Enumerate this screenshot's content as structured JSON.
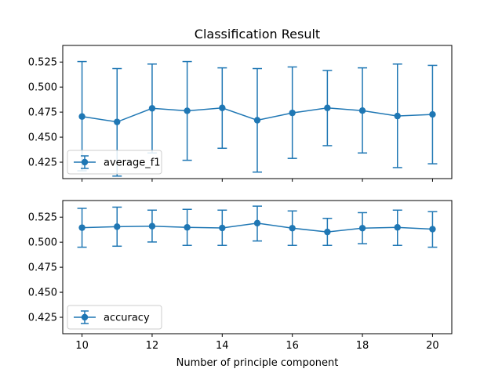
{
  "chart_data": {
    "type": "line",
    "title": "Classification Result",
    "xlabel": "Number of principle component",
    "x": [
      10,
      11,
      12,
      13,
      14,
      15,
      16,
      17,
      18,
      19,
      20
    ],
    "xlim": [
      9.45,
      20.55
    ],
    "xticks": [
      10,
      12,
      14,
      16,
      18,
      20
    ],
    "color": "#1f77b4",
    "panels": [
      {
        "series": [
          {
            "name": "average_f1",
            "y": [
              0.4706,
              0.4652,
              0.4788,
              0.4763,
              0.4792,
              0.4669,
              0.4742,
              0.4792,
              0.4765,
              0.4711,
              0.4727
            ],
            "err_low": [
              0.4164,
              0.4111,
              0.4342,
              0.4269,
              0.4389,
              0.4151,
              0.4288,
              0.4415,
              0.4342,
              0.4196,
              0.4234
            ],
            "err_high": [
              0.5255,
              0.5185,
              0.523,
              0.5255,
              0.5192,
              0.5185,
              0.5201,
              0.5166,
              0.5192,
              0.523,
              0.5217
            ]
          }
        ],
        "ylim": [
          0.4086,
          0.5416
        ],
        "yticks": [
          0.425,
          0.45,
          0.475,
          0.5,
          0.525
        ],
        "ytick_labels": [
          "0.425",
          "0.450",
          "0.475",
          "0.500",
          "0.525"
        ],
        "legend": "lower-left"
      },
      {
        "series": [
          {
            "name": "accuracy",
            "y": [
              0.5145,
              0.5155,
              0.516,
              0.5148,
              0.5142,
              0.519,
              0.514,
              0.5102,
              0.514,
              0.5148,
              0.513
            ],
            "err_low": [
              0.495,
              0.496,
              0.5002,
              0.4968,
              0.4968,
              0.5012,
              0.4968,
              0.4968,
              0.4985,
              0.4968,
              0.495
            ],
            "err_high": [
              0.5338,
              0.535,
              0.532,
              0.5328,
              0.532,
              0.536,
              0.5312,
              0.5238,
              0.5295,
              0.532,
              0.5305
            ]
          }
        ],
        "ylim": [
          0.4086,
          0.5416
        ],
        "yticks": [
          0.425,
          0.45,
          0.475,
          0.5,
          0.525
        ],
        "ytick_labels": [
          "0.425",
          "0.450",
          "0.475",
          "0.500",
          "0.525"
        ],
        "legend": "lower-left"
      }
    ],
    "grid": false
  }
}
